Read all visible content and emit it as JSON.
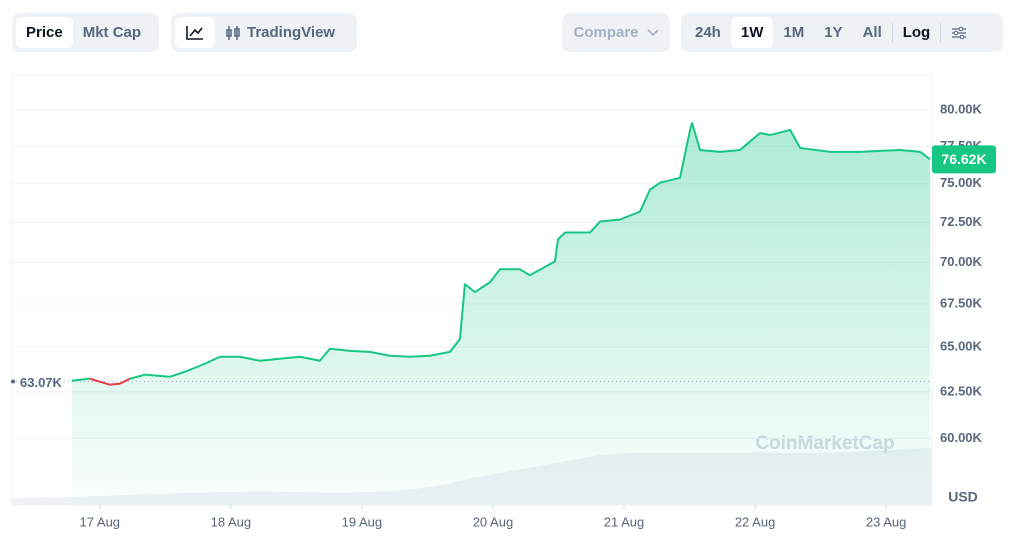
{
  "controls": {
    "metric_tabs": [
      "Price",
      "Mkt Cap"
    ],
    "view_tabs": [
      "TradingView"
    ],
    "compare": "Compare",
    "ranges": [
      "24h",
      "1W",
      "1M",
      "1Y",
      "All"
    ],
    "scale": "Log"
  },
  "chart_data": {
    "type": "line",
    "log_scale": true,
    "grid": true,
    "currency": "USD",
    "watermark": "CoinMarketCap",
    "up_color": "#16c784",
    "down_color": "#ea3943",
    "x": [
      16.786,
      16.924,
      17.076,
      17.153,
      17.229,
      17.344,
      17.534,
      17.649,
      17.802,
      17.916,
      18.069,
      18.221,
      18.374,
      18.527,
      18.679,
      18.756,
      18.908,
      19.061,
      19.214,
      19.366,
      19.519,
      19.672,
      19.748,
      19.786,
      19.863,
      19.977,
      20.053,
      20.206,
      20.282,
      20.473,
      20.496,
      20.55,
      20.74,
      20.817,
      20.969,
      21.122,
      21.198,
      21.275,
      21.427,
      21.504,
      21.519,
      21.58,
      21.733,
      21.885,
      22.038,
      22.115,
      22.267,
      22.344,
      22.573,
      22.802,
      23.107,
      23.26,
      23.336
    ],
    "values": [
      63113,
      63225,
      62894,
      62946,
      63225,
      63447,
      63331,
      63608,
      64057,
      64450,
      64450,
      64224,
      64336,
      64450,
      64224,
      64907,
      64786,
      64727,
      64506,
      64450,
      64506,
      64727,
      65462,
      68680,
      68208,
      68800,
      69584,
      69584,
      69224,
      70072,
      71432,
      71864,
      71864,
      72560,
      72688,
      73192,
      74616,
      75072,
      75392,
      78624,
      79104,
      77256,
      77128,
      77256,
      78408,
      78272,
      78624,
      77392,
      77128,
      77128,
      77256,
      77128,
      76620
    ],
    "reference": {
      "value": 63070,
      "label": "63.07K"
    },
    "current": {
      "value": 76620,
      "label": "76.62K"
    },
    "xlim": [
      16.33,
      23.35
    ],
    "xticks": [
      {
        "value": 17,
        "label": "17 Aug"
      },
      {
        "value": 18,
        "label": "18 Aug"
      },
      {
        "value": 19,
        "label": "19 Aug"
      },
      {
        "value": 20,
        "label": "20 Aug"
      },
      {
        "value": 21,
        "label": "21 Aug"
      },
      {
        "value": 22,
        "label": "22 Aug"
      },
      {
        "value": 23,
        "label": "23 Aug"
      }
    ],
    "ylim": [
      56600,
      82500
    ],
    "yticks": [
      {
        "value": 60000,
        "label": "60.00K"
      },
      {
        "value": 62500,
        "label": "62.50K"
      },
      {
        "value": 65000,
        "label": "65.00K"
      },
      {
        "value": 67500,
        "label": "67.50K"
      },
      {
        "value": 70000,
        "label": "70.00K"
      },
      {
        "value": 72500,
        "label": "72.50K"
      },
      {
        "value": 75000,
        "label": "75.00K"
      },
      {
        "value": 77500,
        "label": "77.50K"
      },
      {
        "value": 80000,
        "label": "80.00K"
      }
    ]
  }
}
